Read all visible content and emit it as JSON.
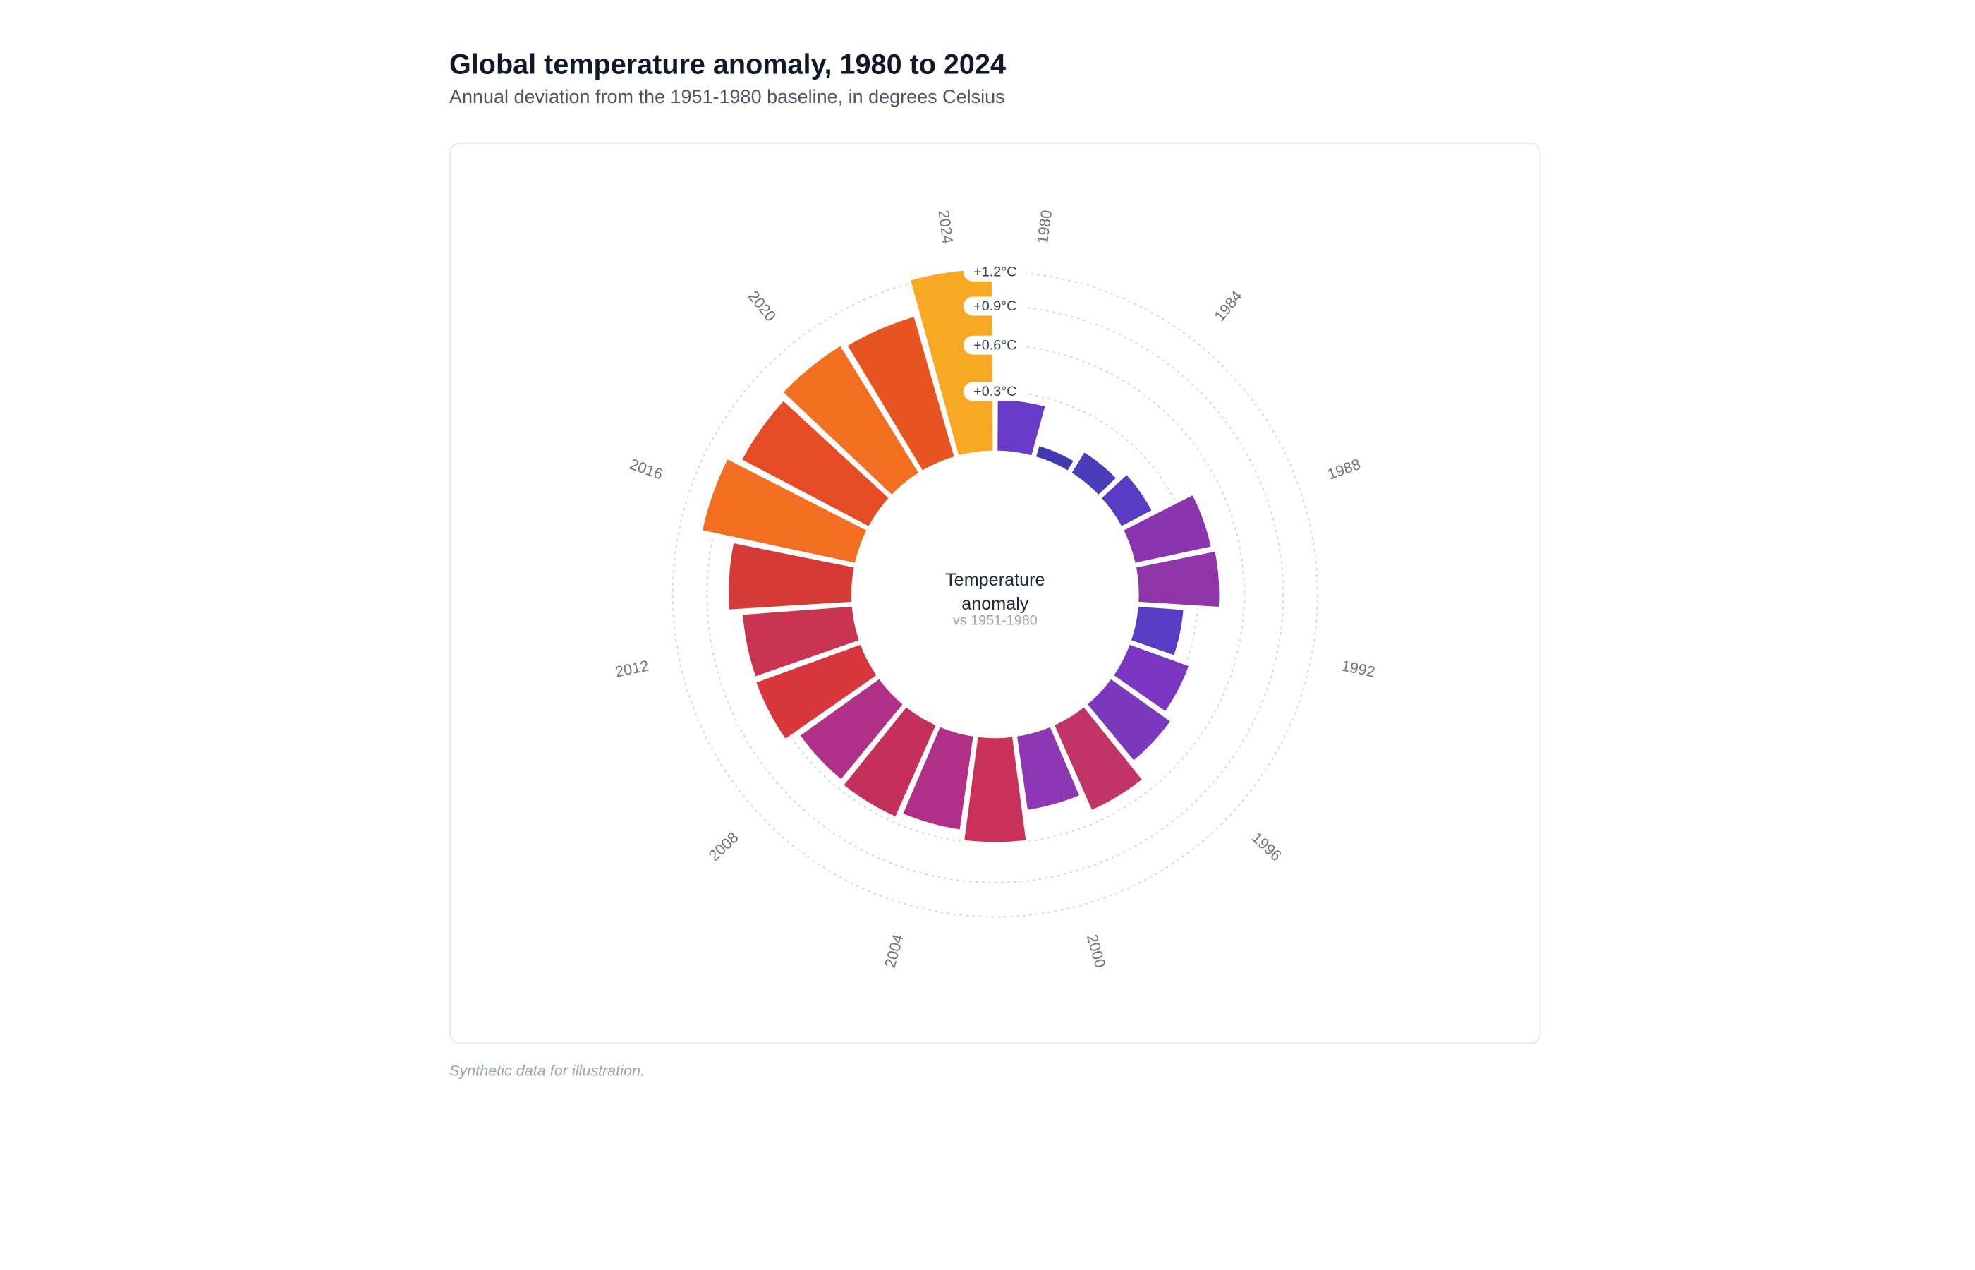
{
  "chart_data": {
    "type": "radial-bar",
    "title": "Global temperature anomaly, 1980 to 2024",
    "subtitle": "Annual deviation from the 1951-1980 baseline, in degrees Celsius",
    "center_label": [
      "Temperature",
      "anomaly"
    ],
    "center_sublabel": "vs 1951-1980",
    "footnote": "Synthetic data for illustration.",
    "categories": [
      "1980",
      null,
      "1984",
      null,
      "1988",
      null,
      "1992",
      null,
      "1996",
      null,
      "2000",
      null,
      "2004",
      null,
      "2008",
      null,
      "2012",
      null,
      "2016",
      null,
      "2020",
      null,
      "2024"
    ],
    "values": [
      0.26,
      0.06,
      0.12,
      0.17,
      0.42,
      0.44,
      0.23,
      0.33,
      0.39,
      0.52,
      0.4,
      0.6,
      0.53,
      0.57,
      0.55,
      0.65,
      0.64,
      0.74,
      1.01,
      0.9,
      0.95,
      0.92,
      1.24
    ],
    "colors": [
      "#6a3bc8",
      "#3f3ab0",
      "#4a3bb8",
      "#5a3bc4",
      "#8b34b0",
      "#9035a8",
      "#5a3bc4",
      "#7a36c0",
      "#7b38bc",
      "#c23366",
      "#8c38b4",
      "#c9305a",
      "#b03088",
      "#c4305a",
      "#b03088",
      "#d6363c",
      "#c83352",
      "#d63a36",
      "#f26e20",
      "#e54b24",
      "#f26e20",
      "#e85420",
      "#f8a823"
    ],
    "scale": "sqrt",
    "ylim": [
      0,
      1.2
    ],
    "yticks": [
      {
        "value": 0.3,
        "label": "+0.3°C"
      },
      {
        "value": 0.6,
        "label": "+0.6°C"
      },
      {
        "value": 0.9,
        "label": "+0.9°C"
      },
      {
        "value": 1.2,
        "label": "+1.2°C"
      }
    ],
    "grid": true
  }
}
